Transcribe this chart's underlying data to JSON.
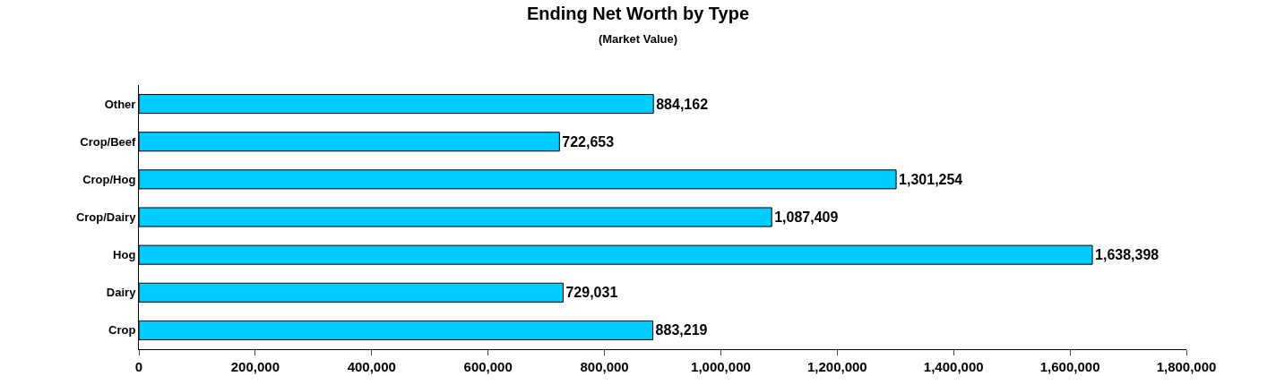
{
  "chart_data": {
    "type": "bar",
    "orientation": "horizontal",
    "title": "Ending Net Worth by Type",
    "subtitle": "(Market Value)",
    "categories": [
      "Other",
      "Crop/Beef",
      "Crop/Hog",
      "Crop/Dairy",
      "Hog",
      "Dairy",
      "Crop"
    ],
    "values": [
      884162,
      722653,
      1301254,
      1087409,
      1638398,
      729031,
      883219
    ],
    "value_labels": [
      "884,162",
      "722,653",
      "1,301,254",
      "1,087,409",
      "1,638,398",
      "729,031",
      "883,219"
    ],
    "color": "#00ccff",
    "xlim": [
      0,
      1800000
    ],
    "xticks": [
      0,
      {
        "value": 200000,
        "label": "200,000"
      },
      {
        "value": 400000,
        "label": "400,000"
      },
      {
        "value": 600000,
        "label": "600,000"
      },
      {
        "value": 800000,
        "label": "800,000"
      },
      {
        "value": 1000000,
        "label": "1,000,000"
      },
      {
        "value": 1200000,
        "label": "1,200,000"
      },
      {
        "value": 1400000,
        "label": "1,400,000"
      },
      {
        "value": 1600000,
        "label": "1,600,000"
      },
      {
        "value": 1800000,
        "label": "1,800,000"
      }
    ],
    "legend": false
  }
}
